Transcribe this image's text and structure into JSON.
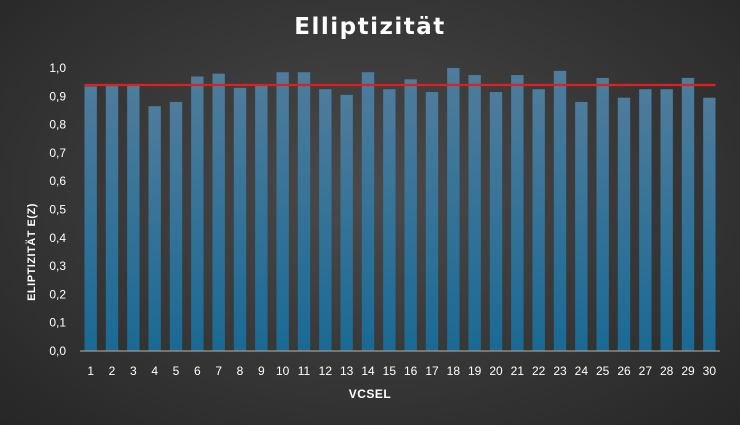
{
  "chart_data": {
    "type": "bar",
    "title": "Elliptizität",
    "xlabel": "VCSEL",
    "ylabel": "ELIPTIZITÄT E(Z)",
    "categories": [
      "1",
      "2",
      "3",
      "4",
      "5",
      "6",
      "7",
      "8",
      "9",
      "10",
      "11",
      "12",
      "13",
      "14",
      "15",
      "16",
      "17",
      "18",
      "19",
      "20",
      "21",
      "22",
      "23",
      "24",
      "25",
      "26",
      "27",
      "28",
      "29",
      "30"
    ],
    "values": [
      0.935,
      0.94,
      0.94,
      0.865,
      0.88,
      0.97,
      0.98,
      0.93,
      0.94,
      0.985,
      0.985,
      0.925,
      0.905,
      0.985,
      0.925,
      0.96,
      0.915,
      1.0,
      0.975,
      0.915,
      0.975,
      0.925,
      0.99,
      0.88,
      0.965,
      0.895,
      0.925,
      0.925,
      0.965,
      0.895
    ],
    "reference_line": 0.94,
    "ylim": [
      0,
      1.0
    ],
    "yticks": [
      "0,0",
      "0,1",
      "0,2",
      "0,3",
      "0,4",
      "0,5",
      "0,6",
      "0,7",
      "0,8",
      "0,9",
      "1,0"
    ],
    "grid": false,
    "legend": "none",
    "colors": {
      "bar_top": "#4e7c9c",
      "bar_bottom": "#1a6a94",
      "reference_line": "#e0201c",
      "baseline": "#9a9a9a",
      "text": "#ffffff"
    }
  }
}
